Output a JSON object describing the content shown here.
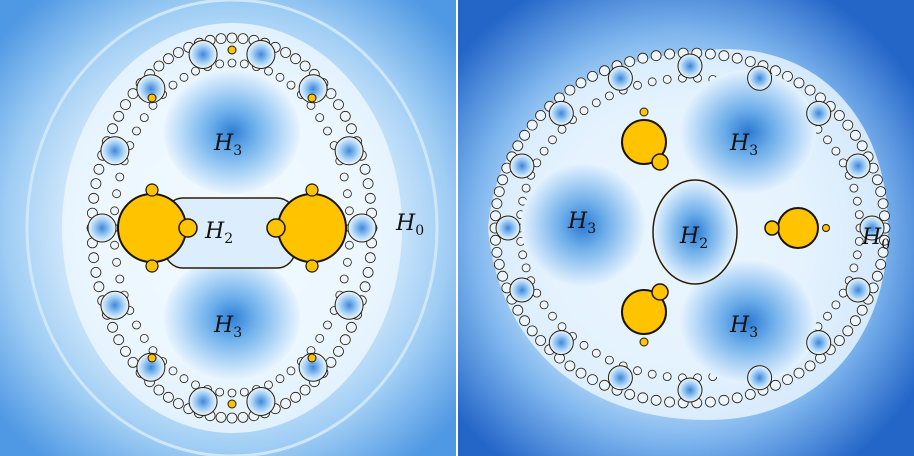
{
  "panels": [
    {
      "id": "left",
      "palette": {
        "outer": "#3f8fe0",
        "mid": "#8cc4f2",
        "near": "#dff0fd",
        "basin_dark": "#2f7fd6",
        "basin_light": "#cfe6fa",
        "filament": "#2a1d08",
        "bulb": "#ffc300"
      },
      "labels": [
        {
          "name": "H3",
          "glyph": "H",
          "sub": "3"
        },
        {
          "name": "H2",
          "glyph": "H",
          "sub": "2"
        },
        {
          "name": "H3",
          "glyph": "H",
          "sub": "3"
        },
        {
          "name": "H0",
          "glyph": "H",
          "sub": "0"
        }
      ]
    },
    {
      "id": "right",
      "palette": {
        "outer": "#2466c8",
        "mid": "#6aa8ea",
        "near": "#dcefff",
        "basin_dark": "#2c78d2",
        "basin_light": "#cde5fa",
        "filament": "#2a1d08",
        "bulb": "#ffc300"
      },
      "labels": [
        {
          "name": "H3",
          "glyph": "H",
          "sub": "3"
        },
        {
          "name": "H3",
          "glyph": "H",
          "sub": "3"
        },
        {
          "name": "H2",
          "glyph": "H",
          "sub": "2"
        },
        {
          "name": "H3",
          "glyph": "H",
          "sub": "3"
        },
        {
          "name": "H0",
          "glyph": "H",
          "sub": "0"
        }
      ]
    }
  ]
}
